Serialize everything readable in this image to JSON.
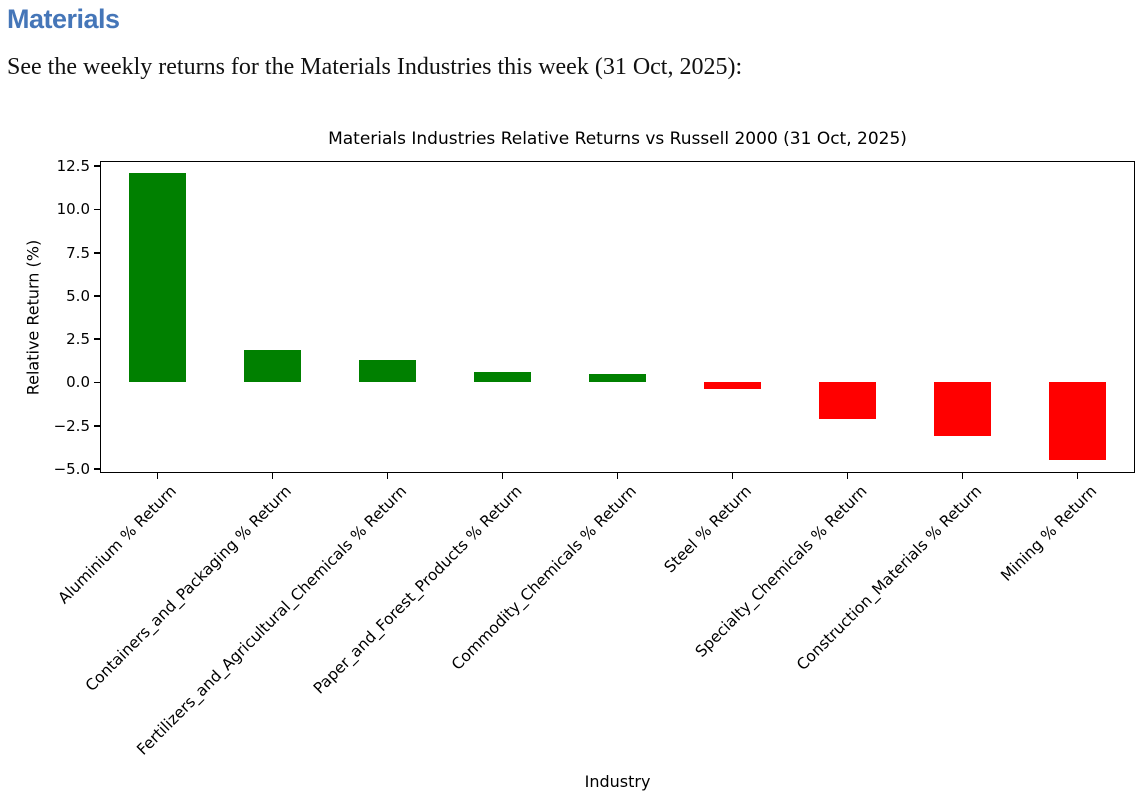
{
  "page": {
    "heading": "Materials",
    "subtitle": "See the weekly returns for the Materials Industries this week (31 Oct, 2025):"
  },
  "colors": {
    "heading_blue": "#4576b8",
    "positive_bar": "#008000",
    "negative_bar": "#ff0000",
    "axis": "#000000"
  },
  "chart_data": {
    "type": "bar",
    "title": "Materials Industries Relative Returns vs Russell 2000 (31 Oct, 2025)",
    "xlabel": "Industry",
    "ylabel": "Relative Return (%)",
    "categories": [
      "Aluminium % Return",
      "Containers_and_Packaging % Return",
      "Fertilizers_and_Agricultural_Chemicals % Return",
      "Paper_and_Forest_Products % Return",
      "Commodity_Chemicals % Return",
      "Steel % Return",
      "Specialty_Chemicals % Return",
      "Construction_Materials % Return",
      "Mining % Return"
    ],
    "values": [
      12.1,
      1.9,
      1.3,
      0.6,
      0.5,
      -0.4,
      -2.1,
      -3.1,
      -4.5
    ],
    "bar_colors": [
      "green",
      "green",
      "green",
      "green",
      "green",
      "red",
      "red",
      "red",
      "red"
    ],
    "yticks": [
      12.5,
      10.0,
      7.5,
      5.0,
      2.5,
      0.0,
      -2.5,
      -5.0
    ],
    "ylim": [
      -5.23,
      12.8
    ],
    "grid": false,
    "legend": null,
    "bar_width_fraction": 0.5
  }
}
